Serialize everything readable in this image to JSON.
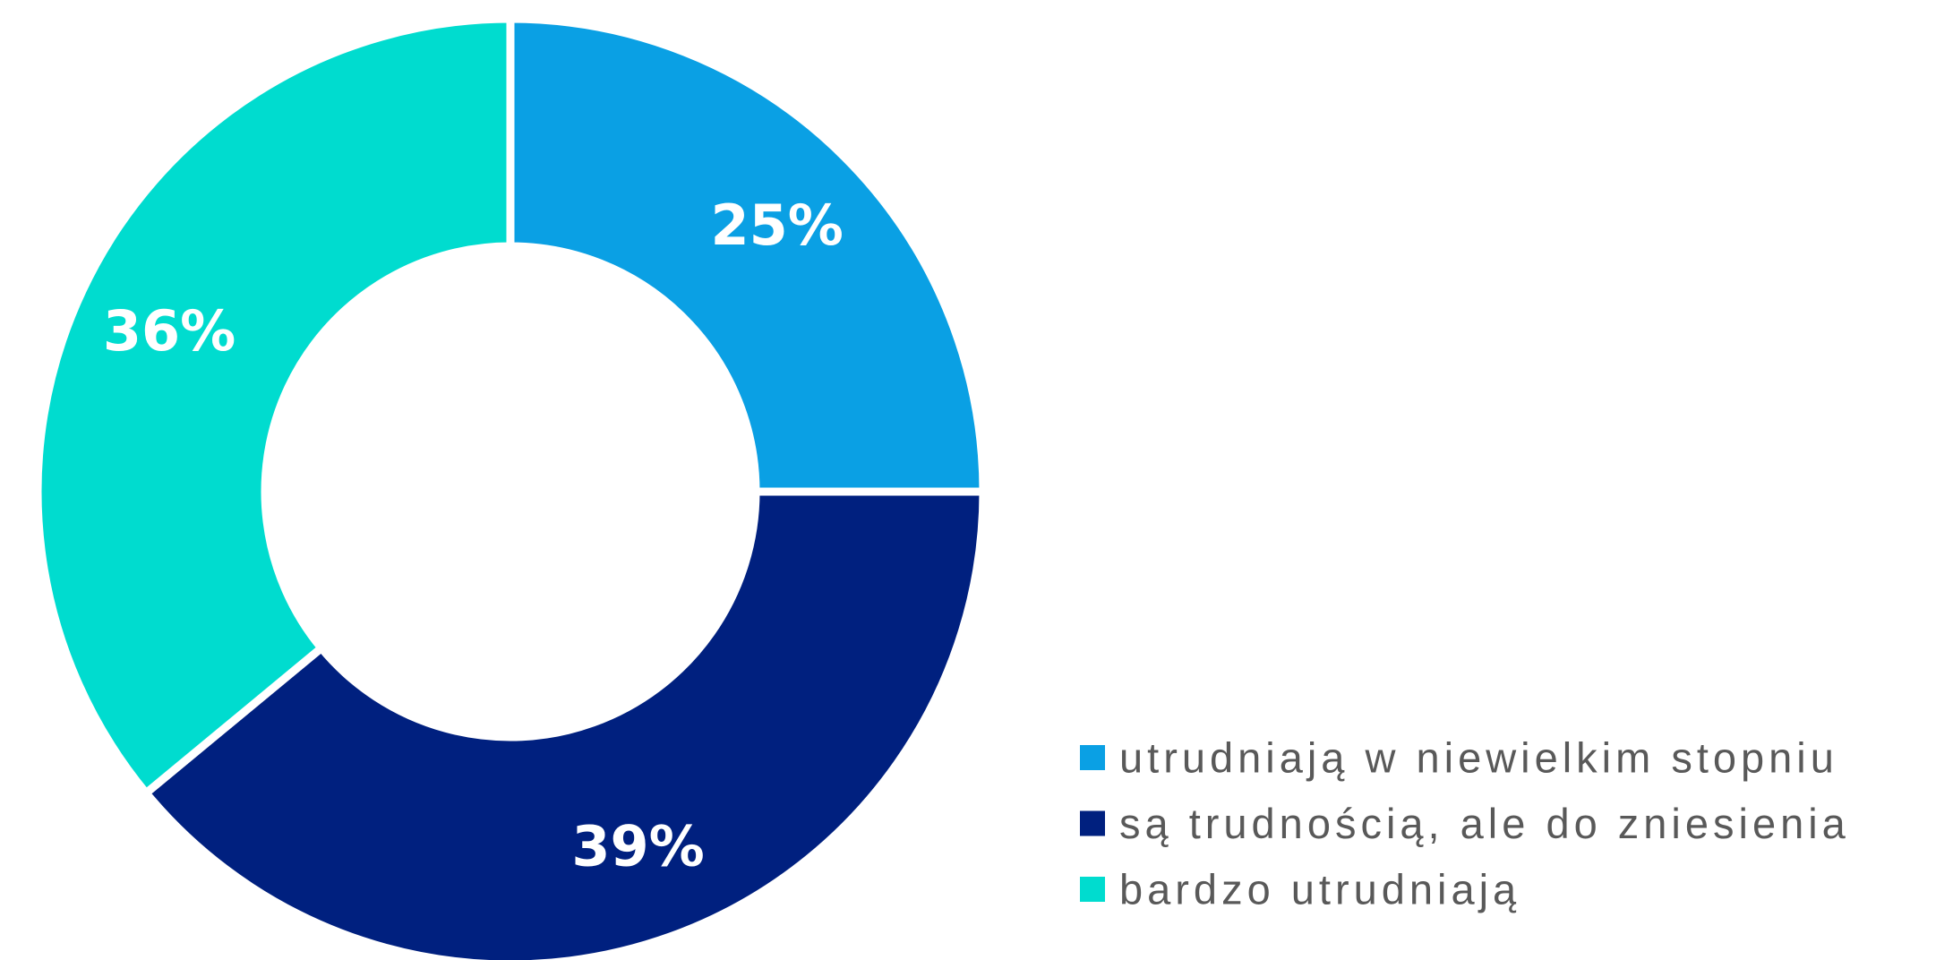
{
  "chart_data": {
    "type": "donut",
    "categories": [
      "utrudniają w niewielkim stopniu",
      "są trudnością, ale do zniesienia",
      "bardzo utrudniają"
    ],
    "values": [
      25,
      39,
      36
    ],
    "value_labels": [
      "25%",
      "39%",
      "36%"
    ],
    "colors": [
      "#0aa0e4",
      "#00207f",
      "#00dccf"
    ],
    "legend": "bottom-right"
  }
}
